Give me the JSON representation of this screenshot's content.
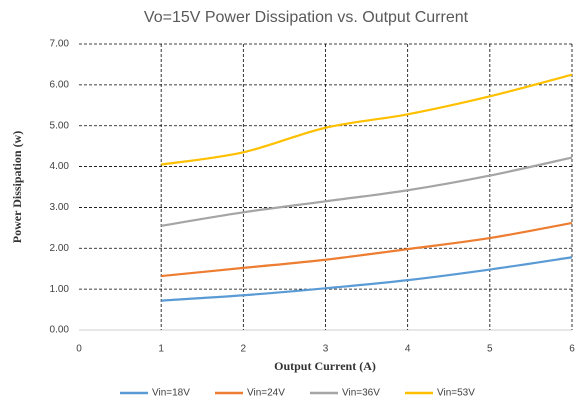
{
  "chart_data": {
    "type": "line",
    "title": "Vo=15V  Power Dissipation vs. Output Current",
    "x_label": "Output Current (A)",
    "y_label": "Power Dissipation (w)",
    "x": [
      1,
      2,
      3,
      4,
      5,
      6
    ],
    "series": [
      {
        "name": "Vin=18V",
        "color": "#5b9bd5",
        "values": [
          0.72,
          0.85,
          1.02,
          1.22,
          1.48,
          1.78
        ]
      },
      {
        "name": "Vin=24V",
        "color": "#ed7d31",
        "values": [
          1.32,
          1.52,
          1.72,
          1.98,
          2.25,
          2.62
        ]
      },
      {
        "name": "Vin=36V",
        "color": "#a5a5a5",
        "values": [
          2.55,
          2.88,
          3.15,
          3.42,
          3.78,
          4.22
        ]
      },
      {
        "name": "Vin=53V",
        "color": "#ffc000",
        "values": [
          4.05,
          4.35,
          4.95,
          5.28,
          5.72,
          6.25
        ]
      }
    ],
    "xlim": [
      0,
      6
    ],
    "xticks": [
      0,
      1,
      2,
      3,
      4,
      5,
      6
    ],
    "ylim": [
      0,
      7
    ],
    "yticks": [
      {
        "value": 0,
        "label": "0.00"
      },
      {
        "value": 1,
        "label": "1.00"
      },
      {
        "value": 2,
        "label": "2.00"
      },
      {
        "value": 3,
        "label": "3.00"
      },
      {
        "value": 4,
        "label": "4.00"
      },
      {
        "value": 5,
        "label": "5.00"
      },
      {
        "value": 6,
        "label": "6.00"
      },
      {
        "value": 7,
        "label": "7.00"
      }
    ],
    "grid": true,
    "legend": "bottom"
  }
}
